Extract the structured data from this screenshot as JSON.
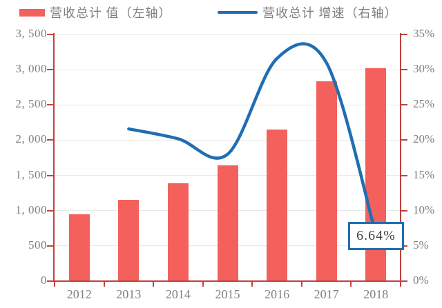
{
  "legend": {
    "bar": {
      "label": "营收总计 值（左轴）",
      "swatch_color": "#F4605C"
    },
    "line": {
      "label": "营收总计 增速（右轴）",
      "swatch_color": "#1F6EB4"
    }
  },
  "annotation": {
    "label": "6.64%"
  },
  "chart_data": {
    "type": "combo-bar-line",
    "categories": [
      "2012",
      "2013",
      "2014",
      "2015",
      "2016",
      "2017",
      "2018"
    ],
    "series": [
      {
        "name": "营收总计 值（左轴）",
        "type": "bar",
        "axis": "left",
        "color": "#F4605C",
        "values": [
          945,
          1150,
          1385,
          1640,
          2150,
          2840,
          3020
        ]
      },
      {
        "name": "营收总计 增速（右轴）",
        "type": "line",
        "axis": "right",
        "color": "#1F6EB4",
        "values": [
          null,
          21.6,
          20.2,
          18.0,
          31.6,
          31.0,
          6.64
        ]
      }
    ],
    "left_axis": {
      "min": 0,
      "max": 3500,
      "step": 500,
      "tick_labels": [
        "0",
        "500",
        "1, 000",
        "1, 500",
        "2, 000",
        "2, 500",
        "3, 000",
        "3, 500"
      ]
    },
    "right_axis": {
      "min": 0,
      "max": 35,
      "step": 5,
      "tick_labels": [
        "0%",
        "5%",
        "10%",
        "15%",
        "20%",
        "25%",
        "30%",
        "35%"
      ]
    },
    "annotation": {
      "label": "6.64%",
      "category": "2018",
      "series": "营收总计 增速（右轴）",
      "value": 6.64
    },
    "grid": true,
    "legend_position": "top",
    "colors": {
      "axis": "#C0413E",
      "gridline": "#E9E9E9",
      "tick_label": "#7F7F7F",
      "background": "#FFFFFF"
    }
  }
}
